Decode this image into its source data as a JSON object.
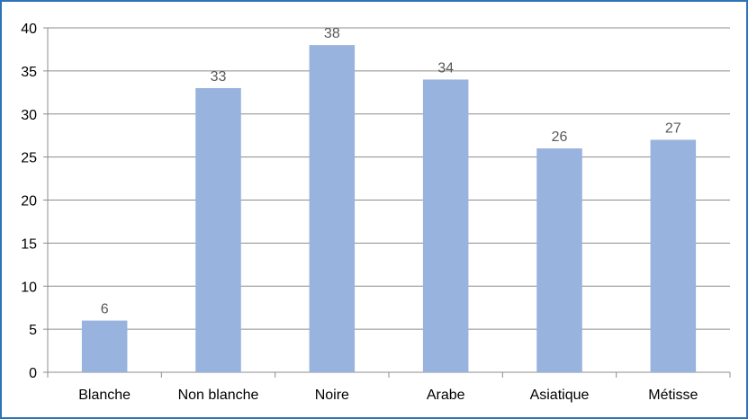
{
  "chart_data": {
    "type": "bar",
    "categories": [
      "Blanche",
      "Non blanche",
      "Noire",
      "Arabe",
      "Asiatique",
      "Métisse"
    ],
    "values": [
      6,
      33,
      38,
      34,
      26,
      27
    ],
    "ylim": [
      0,
      40
    ],
    "yticks": [
      "0",
      "5",
      "10",
      "15",
      "20",
      "25",
      "30",
      "35",
      "40"
    ],
    "grid": true,
    "legend": "none",
    "bar_color": "#98b3de",
    "grid_color": "#8c8c8c",
    "frame_color": "#2f73b7"
  }
}
